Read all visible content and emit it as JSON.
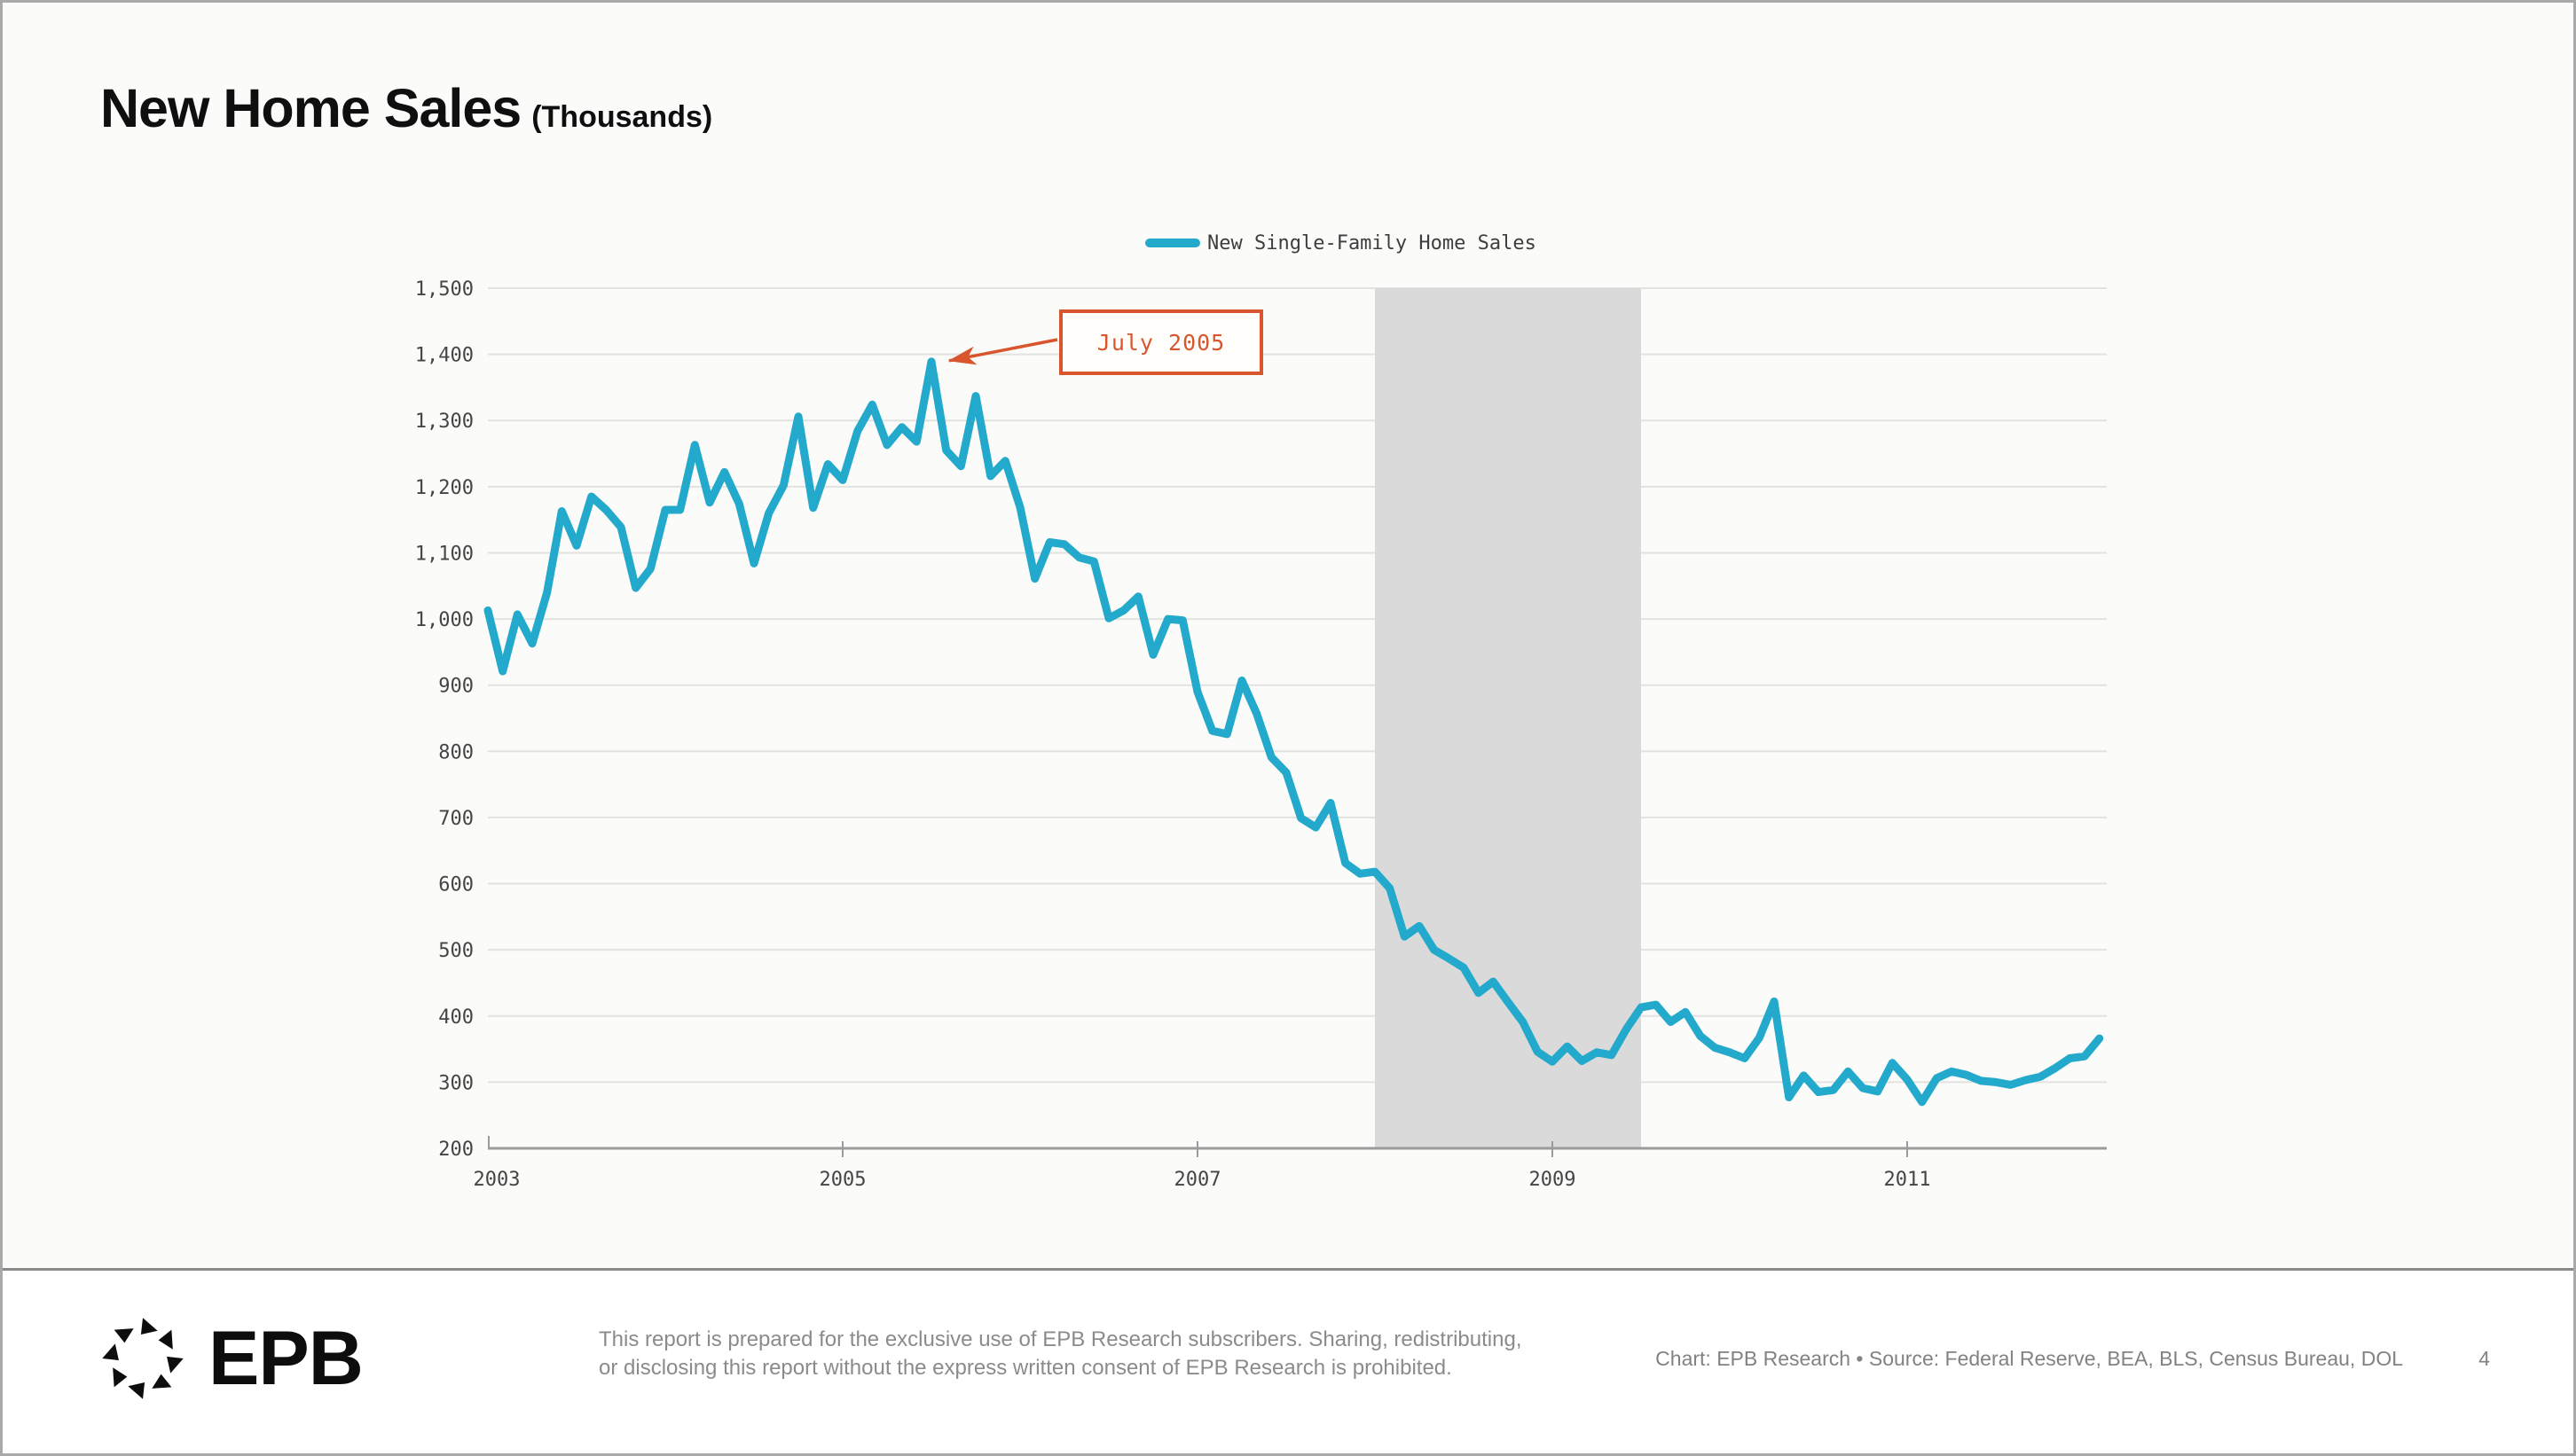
{
  "page": {
    "title": "New Home Sales",
    "title_unit": "(Thousands)"
  },
  "legend": {
    "label": "New Single-Family Home Sales"
  },
  "annotation": {
    "label": "July 2005",
    "target_month_index": 30,
    "target_value": 1389
  },
  "chart_data": {
    "type": "line",
    "title": "New Home Sales (Thousands)",
    "series_name": "New Single-Family Home Sales",
    "x_start": "2003-01",
    "x_frequency": "monthly",
    "values": [
      1013,
      921,
      1007,
      963,
      1040,
      1163,
      1111,
      1185,
      1165,
      1139,
      1047,
      1076,
      1165,
      1165,
      1263,
      1176,
      1222,
      1174,
      1084,
      1160,
      1202,
      1306,
      1168,
      1234,
      1210,
      1284,
      1324,
      1263,
      1290,
      1268,
      1389,
      1255,
      1231,
      1337,
      1216,
      1239,
      1169,
      1061,
      1116,
      1113,
      1093,
      1087,
      1001,
      1013,
      1034,
      946,
      1000,
      998,
      890,
      831,
      826,
      907,
      857,
      791,
      768,
      699,
      685,
      722,
      631,
      615,
      618,
      593,
      520,
      536,
      500,
      487,
      473,
      435,
      452,
      421,
      391,
      346,
      331,
      354,
      332,
      345,
      341,
      380,
      413,
      417,
      391,
      406,
      370,
      352,
      345,
      336,
      367,
      422,
      277,
      310,
      285,
      288,
      316,
      291,
      286,
      329,
      304,
      270,
      306,
      316,
      311,
      302,
      300,
      296,
      303,
      308,
      321,
      336,
      339,
      366
    ],
    "ylim": [
      200,
      1500
    ],
    "y_ticks": [
      200,
      300,
      400,
      500,
      600,
      700,
      800,
      900,
      1000,
      1100,
      1200,
      1300,
      1400,
      1500
    ],
    "y_tick_labels": [
      "200",
      "300",
      "400",
      "500",
      "600",
      "700",
      "800",
      "900",
      "1,000",
      "1,100",
      "1,200",
      "1,300",
      "1,400",
      "1,500"
    ],
    "x_ticks": [
      {
        "month_index": 0,
        "label": "2003"
      },
      {
        "month_index": 24,
        "label": "2005"
      },
      {
        "month_index": 48,
        "label": "2007"
      },
      {
        "month_index": 72,
        "label": "2009"
      },
      {
        "month_index": 96,
        "label": "2011"
      }
    ],
    "grid": "horizontal",
    "legend_position": "top-center",
    "line_color": "#22A9CB",
    "recession_band": {
      "start_month_index": 60,
      "end_month_index": 78,
      "color": "#DADADA"
    }
  },
  "colors": {
    "accent_orange": "#D9552E",
    "axis": "#9B9B9B",
    "gridline": "#E2E2E0"
  },
  "footer": {
    "logo_text": "EPB",
    "disclaimer_line1": "This report is prepared for the exclusive use of EPB Research subscribers. Sharing, redistributing,",
    "disclaimer_line2": "or disclosing this report without the express written consent of EPB Research is prohibited.",
    "credit": "Chart: EPB Research  •  Source: Federal Reserve, BEA, BLS, Census Bureau, DOL",
    "page_number": "4"
  }
}
